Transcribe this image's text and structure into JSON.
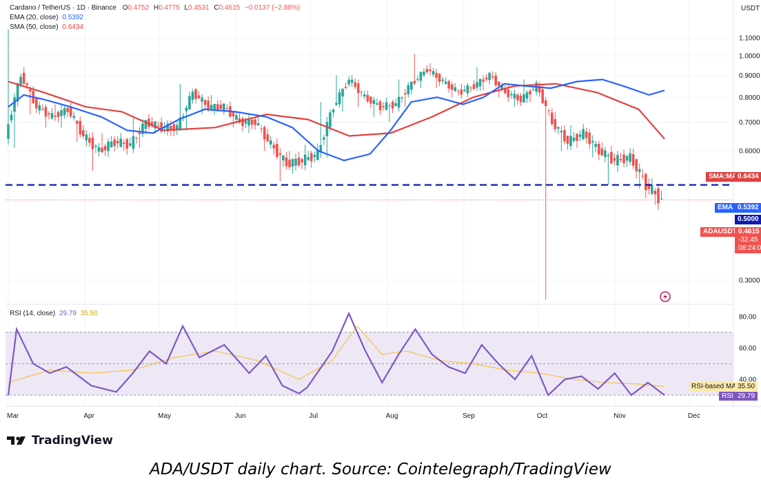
{
  "header": {
    "symbol": "Cardano / TetherUS · 1D · Binance",
    "ohlc": {
      "o_label": "O",
      "o": "0.4752",
      "h_label": "H",
      "h": "0.4775",
      "l_label": "L",
      "l": "0.4531",
      "c_label": "C",
      "c": "0.4615",
      "change": "−0.0137 (−2.88%)"
    },
    "ema_label": "EMA (20, close)",
    "ema_value": "0.5392",
    "sma_label": "SMA (50, close)",
    "sma_value": "0.6434"
  },
  "price_axis": {
    "unit": "USDT",
    "ticks": [
      "1.1000",
      "1.0000",
      "0.9000",
      "0.8000",
      "0.7000",
      "0.6000",
      "0.3000"
    ]
  },
  "price_labels": {
    "sma_tag": "SMA:MA",
    "sma_value": "0.6434",
    "ema_tag": "EMA",
    "ema_value": "0.5392",
    "level_value": "0.5000",
    "symbol_tag": "ADAUSDT",
    "last_price": "0.4615",
    "last_change": "-32.45",
    "countdown": "08:24:0"
  },
  "rsi": {
    "label": "RSI (14, close)",
    "value": "29.79",
    "ma_value": "35.50",
    "ticks": [
      "80.00",
      "60.00",
      "40.00"
    ],
    "ma_tag": "RSI-based MA",
    "ma_tag_value": "35.50",
    "rsi_tag": "RSI",
    "rsi_tag_value": "29.79"
  },
  "time_axis": [
    "Mar",
    "Apr",
    "May",
    "Jun",
    "Jul",
    "Aug",
    "Sep",
    "Oct",
    "Nov",
    "Dec"
  ],
  "branding": {
    "logo": "TradingView"
  },
  "caption": "ADA/USDT daily chart. Source: Cointelegraph/TradingView",
  "colors": {
    "up": "#26a69a",
    "down": "#ef5350",
    "ema": "#2962ff",
    "sma": "#e0403f",
    "level": "#0d1bb0",
    "rsi": "#7e57c2",
    "rsi_ma": "#f5c542",
    "rsi_band": "#ede7f6"
  },
  "chart_data": {
    "type": "candlestick",
    "period": "1D",
    "x_range": [
      "2023-03-01",
      "2023-11-21"
    ],
    "horizontal_level": 0.5,
    "ohlc_weekly": [
      {
        "date": "2023-03-01",
        "o": 0.64,
        "h": 1.15,
        "l": 0.61,
        "c": 0.9
      },
      {
        "date": "2023-03-08",
        "o": 0.9,
        "h": 0.94,
        "l": 0.73,
        "c": 0.76
      },
      {
        "date": "2023-03-15",
        "o": 0.76,
        "h": 0.78,
        "l": 0.68,
        "c": 0.72
      },
      {
        "date": "2023-03-22",
        "o": 0.72,
        "h": 0.77,
        "l": 0.68,
        "c": 0.75
      },
      {
        "date": "2023-03-29",
        "o": 0.75,
        "h": 0.76,
        "l": 0.63,
        "c": 0.65
      },
      {
        "date": "2023-04-05",
        "o": 0.65,
        "h": 0.67,
        "l": 0.54,
        "c": 0.6
      },
      {
        "date": "2023-04-12",
        "o": 0.6,
        "h": 0.66,
        "l": 0.58,
        "c": 0.63
      },
      {
        "date": "2023-04-19",
        "o": 0.63,
        "h": 0.65,
        "l": 0.6,
        "c": 0.62
      },
      {
        "date": "2023-04-26",
        "o": 0.62,
        "h": 0.72,
        "l": 0.61,
        "c": 0.7
      },
      {
        "date": "2023-05-03",
        "o": 0.7,
        "h": 0.73,
        "l": 0.66,
        "c": 0.68
      },
      {
        "date": "2023-05-10",
        "o": 0.68,
        "h": 0.7,
        "l": 0.65,
        "c": 0.68
      },
      {
        "date": "2023-05-17",
        "o": 0.68,
        "h": 0.86,
        "l": 0.67,
        "c": 0.82
      },
      {
        "date": "2023-05-24",
        "o": 0.82,
        "h": 0.83,
        "l": 0.73,
        "c": 0.76
      },
      {
        "date": "2023-05-31",
        "o": 0.76,
        "h": 0.81,
        "l": 0.74,
        "c": 0.76
      },
      {
        "date": "2023-06-07",
        "o": 0.76,
        "h": 0.77,
        "l": 0.68,
        "c": 0.7
      },
      {
        "date": "2023-06-14",
        "o": 0.7,
        "h": 0.72,
        "l": 0.66,
        "c": 0.7
      },
      {
        "date": "2023-06-21",
        "o": 0.7,
        "h": 0.72,
        "l": 0.6,
        "c": 0.62
      },
      {
        "date": "2023-06-28",
        "o": 0.62,
        "h": 0.63,
        "l": 0.51,
        "c": 0.56
      },
      {
        "date": "2023-07-05",
        "o": 0.56,
        "h": 0.6,
        "l": 0.54,
        "c": 0.57
      },
      {
        "date": "2023-07-12",
        "o": 0.57,
        "h": 0.62,
        "l": 0.56,
        "c": 0.59
      },
      {
        "date": "2023-07-19",
        "o": 0.59,
        "h": 0.78,
        "l": 0.58,
        "c": 0.76
      },
      {
        "date": "2023-07-26",
        "o": 0.76,
        "h": 0.9,
        "l": 0.74,
        "c": 0.88
      },
      {
        "date": "2023-08-02",
        "o": 0.88,
        "h": 0.9,
        "l": 0.76,
        "c": 0.8
      },
      {
        "date": "2023-08-09",
        "o": 0.8,
        "h": 0.82,
        "l": 0.72,
        "c": 0.76
      },
      {
        "date": "2023-08-16",
        "o": 0.76,
        "h": 0.78,
        "l": 0.7,
        "c": 0.77
      },
      {
        "date": "2023-08-23",
        "o": 0.77,
        "h": 0.88,
        "l": 0.76,
        "c": 0.86
      },
      {
        "date": "2023-08-30",
        "o": 0.86,
        "h": 1.01,
        "l": 0.84,
        "c": 0.93
      },
      {
        "date": "2023-09-06",
        "o": 0.93,
        "h": 0.96,
        "l": 0.84,
        "c": 0.87
      },
      {
        "date": "2023-09-13",
        "o": 0.87,
        "h": 0.88,
        "l": 0.8,
        "c": 0.82
      },
      {
        "date": "2023-09-20",
        "o": 0.82,
        "h": 0.86,
        "l": 0.8,
        "c": 0.85
      },
      {
        "date": "2023-09-27",
        "o": 0.85,
        "h": 0.94,
        "l": 0.83,
        "c": 0.9
      },
      {
        "date": "2023-10-04",
        "o": 0.9,
        "h": 0.92,
        "l": 0.8,
        "c": 0.82
      },
      {
        "date": "2023-10-11",
        "o": 0.82,
        "h": 0.86,
        "l": 0.76,
        "c": 0.79
      },
      {
        "date": "2023-10-18",
        "o": 0.79,
        "h": 0.88,
        "l": 0.78,
        "c": 0.85
      },
      {
        "date": "2023-10-25",
        "o": 0.85,
        "h": 0.87,
        "l": 0.27,
        "c": 0.7
      },
      {
        "date": "2023-11-01",
        "o": 0.7,
        "h": 0.74,
        "l": 0.6,
        "c": 0.63
      },
      {
        "date": "2023-11-08",
        "o": 0.63,
        "h": 0.69,
        "l": 0.61,
        "c": 0.66
      },
      {
        "date": "2023-11-15",
        "o": 0.66,
        "h": 0.68,
        "l": 0.58,
        "c": 0.6
      },
      {
        "date": "2023-11-22",
        "o": 0.6,
        "h": 0.61,
        "l": 0.5,
        "c": 0.57
      },
      {
        "date": "2023-11-29",
        "o": 0.57,
        "h": 0.6,
        "l": 0.55,
        "c": 0.58
      },
      {
        "date": "2023-12-06",
        "o": 0.58,
        "h": 0.6,
        "l": 0.49,
        "c": 0.5
      },
      {
        "date": "2023-12-13",
        "o": 0.5,
        "h": 0.51,
        "l": 0.45,
        "c": 0.46
      }
    ],
    "ema20_points": [
      [
        0.0,
        0.76
      ],
      [
        0.03,
        0.81
      ],
      [
        0.07,
        0.79
      ],
      [
        0.12,
        0.76
      ],
      [
        0.18,
        0.72
      ],
      [
        0.23,
        0.67
      ],
      [
        0.28,
        0.66
      ],
      [
        0.33,
        0.71
      ],
      [
        0.38,
        0.75
      ],
      [
        0.44,
        0.74
      ],
      [
        0.5,
        0.72
      ],
      [
        0.55,
        0.68
      ],
      [
        0.6,
        0.6
      ],
      [
        0.65,
        0.57
      ],
      [
        0.7,
        0.59
      ],
      [
        0.74,
        0.67
      ],
      [
        0.78,
        0.78
      ],
      [
        0.83,
        0.8
      ],
      [
        0.88,
        0.77
      ],
      [
        0.92,
        0.8
      ],
      [
        0.96,
        0.86
      ],
      [
        1.0,
        0.85
      ],
      [
        1.05,
        0.84
      ],
      [
        1.1,
        0.87
      ],
      [
        1.15,
        0.88
      ],
      [
        1.19,
        0.85
      ],
      [
        1.24,
        0.81
      ],
      [
        1.27,
        0.83
      ]
    ],
    "sma50_points": [
      [
        0.0,
        0.87
      ],
      [
        0.07,
        0.82
      ],
      [
        0.15,
        0.76
      ],
      [
        0.22,
        0.74
      ],
      [
        0.3,
        0.67
      ],
      [
        0.4,
        0.68
      ],
      [
        0.5,
        0.73
      ],
      [
        0.58,
        0.71
      ],
      [
        0.66,
        0.65
      ],
      [
        0.74,
        0.66
      ],
      [
        0.82,
        0.72
      ],
      [
        0.9,
        0.8
      ],
      [
        0.98,
        0.85
      ],
      [
        1.06,
        0.86
      ],
      [
        1.14,
        0.82
      ],
      [
        1.22,
        0.75
      ],
      [
        1.27,
        0.64
      ]
    ],
    "rsi14": [
      [
        0,
        30
      ],
      [
        2,
        72
      ],
      [
        6,
        50
      ],
      [
        10,
        44
      ],
      [
        14,
        48
      ],
      [
        20,
        36
      ],
      [
        26,
        32
      ],
      [
        30,
        44
      ],
      [
        34,
        58
      ],
      [
        38,
        50
      ],
      [
        42,
        74
      ],
      [
        46,
        54
      ],
      [
        52,
        62
      ],
      [
        58,
        44
      ],
      [
        62,
        55
      ],
      [
        66,
        36
      ],
      [
        70,
        31
      ],
      [
        72,
        35
      ],
      [
        78,
        58
      ],
      [
        82,
        82
      ],
      [
        86,
        58
      ],
      [
        90,
        38
      ],
      [
        94,
        56
      ],
      [
        98,
        72
      ],
      [
        102,
        56
      ],
      [
        106,
        48
      ],
      [
        110,
        44
      ],
      [
        114,
        62
      ],
      [
        118,
        50
      ],
      [
        122,
        40
      ],
      [
        126,
        55
      ],
      [
        130,
        30
      ],
      [
        134,
        40
      ],
      [
        138,
        42
      ],
      [
        142,
        34
      ],
      [
        146,
        44
      ],
      [
        150,
        30
      ],
      [
        154,
        38
      ],
      [
        158,
        30
      ]
    ],
    "rsi_ma": [
      [
        0,
        38
      ],
      [
        10,
        46
      ],
      [
        20,
        44
      ],
      [
        30,
        46
      ],
      [
        40,
        54
      ],
      [
        50,
        58
      ],
      [
        60,
        52
      ],
      [
        70,
        40
      ],
      [
        78,
        52
      ],
      [
        84,
        74
      ],
      [
        90,
        56
      ],
      [
        96,
        58
      ],
      [
        104,
        52
      ],
      [
        112,
        50
      ],
      [
        120,
        46
      ],
      [
        128,
        44
      ],
      [
        136,
        40
      ],
      [
        144,
        38
      ],
      [
        152,
        37
      ],
      [
        158,
        35.5
      ]
    ],
    "rsi_bands": {
      "upper": 70,
      "mid": 50,
      "lower": 30
    }
  }
}
